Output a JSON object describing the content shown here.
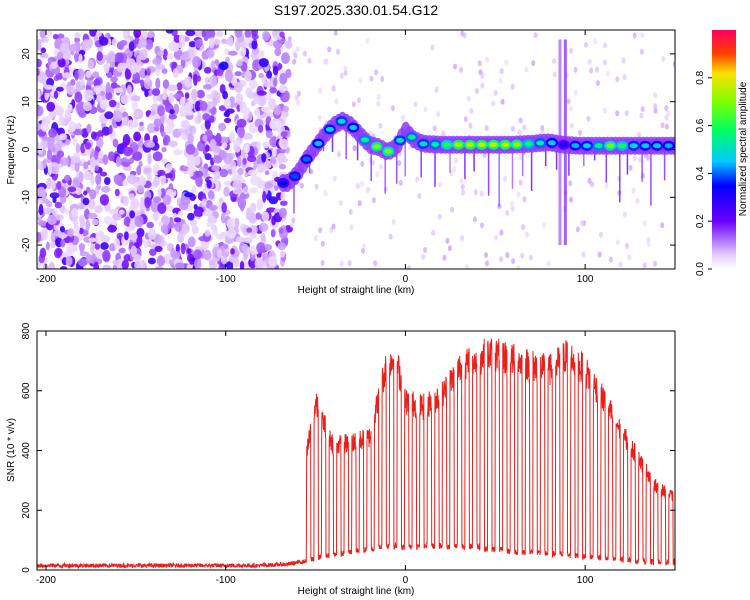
{
  "title": "S197.2025.330.01.54.G12",
  "chart_data": [
    {
      "type": "heatmap",
      "xlabel": "Height of straight line (km)",
      "ylabel": "Frequency (Hz)",
      "xlim": [
        -205,
        150
      ],
      "ylim": [
        -25,
        25
      ],
      "xticks": [
        -200,
        -100,
        0,
        100
      ],
      "yticks": [
        -20,
        -10,
        0,
        10,
        20
      ],
      "colorbar": {
        "label": "Normalized spectral amplitude",
        "range": [
          0,
          1
        ],
        "ticks": [
          "0.0",
          "0.2",
          "0.4",
          "0.6",
          "0.8"
        ]
      },
      "ridge": {
        "x": [
          -65,
          -60,
          -55,
          -50,
          -45,
          -40,
          -35,
          -30,
          -25,
          -20,
          -15,
          -10,
          -5,
          0,
          5,
          10,
          20,
          30,
          40,
          50,
          60,
          70,
          80,
          88,
          95,
          105,
          115,
          125,
          135,
          145,
          150
        ],
        "freq": [
          -7,
          -5,
          -2,
          0.5,
          3,
          5,
          6,
          5,
          3,
          1,
          0.5,
          -0.5,
          0.5,
          4,
          2,
          1.2,
          1,
          1,
          1,
          1,
          1,
          1.2,
          1.5,
          1,
          0.8,
          0.8,
          0.8,
          0.8,
          0.8,
          0.8,
          0.8
        ],
        "peak_amplitude": [
          0.35,
          0.4,
          0.4,
          0.45,
          0.45,
          0.5,
          0.5,
          0.45,
          0.5,
          0.6,
          0.7,
          0.7,
          0.5,
          0.5,
          0.55,
          0.5,
          0.55,
          0.75,
          0.75,
          0.75,
          0.75,
          0.55,
          0.5,
          0.3,
          0.45,
          0.5,
          0.7,
          0.5,
          0.45,
          0.45,
          0.4
        ]
      }
    },
    {
      "type": "line",
      "xlabel": "Height of straight line (km)",
      "ylabel": "SNR (10 * v/v)",
      "xlim": [
        -205,
        150
      ],
      "ylim": [
        0,
        800
      ],
      "xticks": [
        -200,
        -100,
        0,
        100
      ],
      "yticks": [
        0,
        200,
        400,
        600,
        800
      ],
      "series": [
        {
          "name": "SNR",
          "color": "#e8201c",
          "x": [
            -205,
            -180,
            -160,
            -140,
            -120,
            -100,
            -80,
            -65,
            -60,
            -55,
            -50,
            -40,
            -30,
            -20,
            -10,
            -5,
            0,
            10,
            20,
            30,
            40,
            45,
            50,
            60,
            70,
            80,
            90,
            100,
            110,
            120,
            130,
            140,
            150
          ],
          "envelope": [
            15,
            15,
            15,
            15,
            15,
            15,
            15,
            20,
            50,
            420,
            600,
            450,
            460,
            480,
            760,
            760,
            610,
            590,
            630,
            730,
            760,
            780,
            780,
            760,
            740,
            720,
            780,
            720,
            620,
            500,
            400,
            300,
            260
          ],
          "baseline": [
            15,
            15,
            15,
            15,
            15,
            15,
            15,
            20,
            25,
            30,
            40,
            50,
            60,
            70,
            80,
            80,
            75,
            80,
            80,
            80,
            80,
            70,
            70,
            60,
            60,
            55,
            50,
            45,
            40,
            35,
            30,
            25,
            25
          ]
        }
      ]
    }
  ]
}
